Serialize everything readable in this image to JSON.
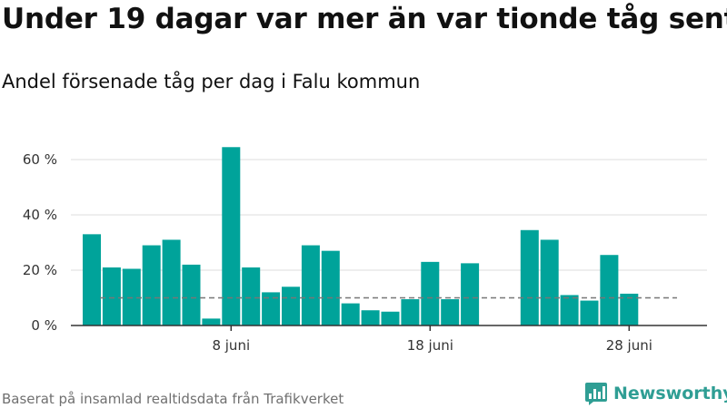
{
  "title": "Under 19 dagar var mer än var tionde tåg sent",
  "subtitle": "Andel försenade tåg per dag i Falu kommun",
  "footer": "Baserat på insamlad realtidsdata från Trafikverket",
  "logo": {
    "name": "Newsworthy",
    "icon": "bar-chart-logo-icon",
    "color": "#2f9e94"
  },
  "colors": {
    "bar": "#00a39a",
    "reference_line": "#777777",
    "grid": "#dddddd",
    "axis": "#333333"
  },
  "chart_data": {
    "type": "bar",
    "title": "",
    "xlabel": "",
    "ylabel": "",
    "unit": "%",
    "x": [
      1,
      2,
      3,
      4,
      5,
      6,
      7,
      8,
      9,
      10,
      11,
      12,
      13,
      14,
      15,
      16,
      17,
      18,
      19,
      20,
      21,
      22,
      23,
      24,
      25,
      26,
      27,
      28,
      29,
      30
    ],
    "values": [
      33,
      21,
      20.5,
      29,
      31,
      22,
      2.5,
      64.5,
      21,
      12,
      14,
      29,
      27,
      8,
      5.5,
      5,
      9.5,
      23,
      9.5,
      22.5,
      null,
      null,
      34.5,
      31,
      11,
      9,
      25.5,
      11.5,
      null,
      null
    ],
    "xticks": [
      {
        "x": 8,
        "label": "8 juni"
      },
      {
        "x": 18,
        "label": "18 juni"
      },
      {
        "x": 28,
        "label": "28 juni"
      }
    ],
    "yticks": [
      {
        "value": 0,
        "label": "0 %"
      },
      {
        "value": 20,
        "label": "20 %"
      },
      {
        "value": 40,
        "label": "40 %"
      },
      {
        "value": 60,
        "label": "60 %"
      }
    ],
    "ylim": [
      0,
      65
    ],
    "xlim": [
      0.5,
      30.5
    ],
    "reference_line": {
      "value": 10,
      "style": "dashed"
    },
    "grid": true,
    "legend": "none"
  }
}
